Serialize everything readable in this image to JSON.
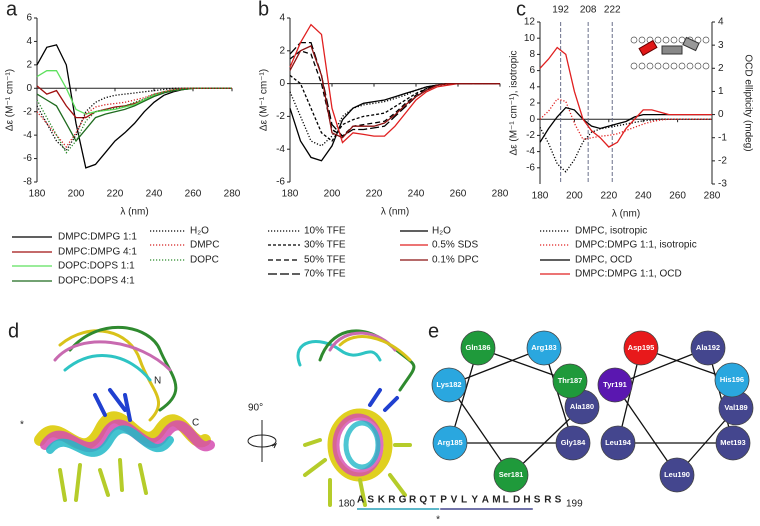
{
  "chart_data": [
    {
      "type": "line",
      "panel": "a",
      "xlabel": "λ (nm)",
      "ylabel": "Δε (M⁻¹ cm⁻¹)",
      "zero_line": true,
      "x": [
        180,
        185,
        190,
        195,
        200,
        205,
        210,
        215,
        220,
        225,
        230,
        235,
        240,
        245,
        250,
        255,
        260,
        265,
        270,
        275,
        280
      ],
      "xlim": [
        180,
        280
      ],
      "xticks": [
        180,
        200,
        220,
        240,
        260,
        280
      ],
      "ylim": [
        -8,
        6
      ],
      "yticks": [
        -8,
        -6,
        -4,
        -2,
        0,
        2,
        4,
        6
      ],
      "series": [
        {
          "name": "DMPC:DMPG 1:1",
          "color": "#000000",
          "dash": "solid",
          "values": [
            2.0,
            3.5,
            3.7,
            2.0,
            -3.0,
            -6.8,
            -6.5,
            -5.5,
            -4.5,
            -3.8,
            -3.0,
            -2.0,
            -1.2,
            -0.6,
            -0.3,
            -0.1,
            0,
            0,
            0,
            0,
            0
          ]
        },
        {
          "name": "DMPC:DMPG 4:1",
          "color": "#a01010",
          "dash": "solid",
          "values": [
            0.2,
            -0.5,
            -0.2,
            -1.5,
            -2.5,
            -2.5,
            -2.0,
            -1.8,
            -1.6,
            -1.5,
            -1.3,
            -1.0,
            -0.6,
            -0.3,
            -0.2,
            -0.1,
            0,
            0,
            0,
            0,
            0
          ]
        },
        {
          "name": "DOPC:DOPS 1:1",
          "color": "#5ee05e",
          "dash": "solid",
          "values": [
            1.0,
            1.5,
            1.5,
            0,
            -1.8,
            -2.2,
            -2.0,
            -1.9,
            -1.8,
            -1.6,
            -1.4,
            -1.0,
            -0.6,
            -0.3,
            -0.2,
            -0.1,
            0,
            0,
            0,
            0,
            0
          ]
        },
        {
          "name": "DOPC:DOPS 4:1",
          "color": "#1f6b1f",
          "dash": "solid",
          "values": [
            -0.5,
            -1.0,
            -1.5,
            -3.0,
            -4.5,
            -3.5,
            -2.5,
            -2.2,
            -2.0,
            -1.8,
            -1.5,
            -1.1,
            -0.7,
            -0.4,
            -0.2,
            -0.1,
            0,
            0,
            0,
            0,
            0
          ]
        },
        {
          "name": "H₂O",
          "color": "#000000",
          "dash": "dotted",
          "values": [
            -1.5,
            -3.0,
            -4.5,
            -5.3,
            -4.0,
            -2.0,
            -1.2,
            -0.8,
            -0.6,
            -0.5,
            -0.4,
            -0.3,
            -0.2,
            -0.1,
            0,
            0,
            0,
            0,
            0,
            0,
            0
          ]
        },
        {
          "name": "DMPC",
          "color": "#d42020",
          "dash": "dotted",
          "values": [
            -2.0,
            -3.0,
            -4.0,
            -5.0,
            -3.8,
            -2.2,
            -1.6,
            -1.4,
            -1.3,
            -1.2,
            -1.0,
            -0.8,
            -0.5,
            -0.3,
            -0.1,
            0,
            0,
            0,
            0,
            0,
            0
          ]
        },
        {
          "name": "DOPC",
          "color": "#2a8a2a",
          "dash": "dotted",
          "values": [
            -1.0,
            -2.5,
            -4.0,
            -5.5,
            -4.5,
            -2.8,
            -2.0,
            -1.8,
            -1.7,
            -1.5,
            -1.2,
            -0.9,
            -0.5,
            -0.3,
            -0.1,
            0,
            0,
            0,
            0,
            0,
            0
          ]
        }
      ]
    },
    {
      "type": "line",
      "panel": "b",
      "xlabel": "λ (nm)",
      "ylabel": "Δε (M⁻¹ cm⁻¹)",
      "zero_line": true,
      "x": [
        180,
        185,
        190,
        195,
        200,
        205,
        210,
        215,
        220,
        225,
        230,
        235,
        240,
        245,
        250,
        255,
        260,
        265,
        270,
        275,
        280
      ],
      "xlim": [
        180,
        280
      ],
      "xticks": [
        180,
        200,
        220,
        240,
        260,
        280
      ],
      "ylim": [
        -6,
        4
      ],
      "yticks": [
        -6,
        -4,
        -2,
        0,
        2,
        4
      ],
      "series": [
        {
          "name": "10% TFE",
          "color": "#000000",
          "dash": "dotted",
          "values": [
            -0.5,
            -2.0,
            -3.5,
            -3.8,
            -3.2,
            -2.0,
            -1.5,
            -1.3,
            -1.2,
            -1.1,
            -0.9,
            -0.7,
            -0.4,
            -0.2,
            -0.1,
            0,
            0,
            0,
            0,
            0,
            0
          ]
        },
        {
          "name": "30% TFE",
          "color": "#000000",
          "dash": "short-dash",
          "values": [
            0.5,
            0,
            -1.5,
            -3.0,
            -3.5,
            -2.5,
            -2.2,
            -2.0,
            -1.9,
            -1.8,
            -1.4,
            -1.0,
            -0.6,
            -0.3,
            -0.1,
            0,
            0,
            0,
            0,
            0,
            0
          ]
        },
        {
          "name": "50% TFE",
          "color": "#000000",
          "dash": "dash",
          "values": [
            1.5,
            2.0,
            1.8,
            0,
            -2.8,
            -3.2,
            -2.6,
            -2.5,
            -2.4,
            -2.3,
            -1.8,
            -1.2,
            -0.7,
            -0.3,
            -0.1,
            0,
            0,
            0,
            0,
            0,
            0
          ]
        },
        {
          "name": "70% TFE",
          "color": "#000000",
          "dash": "long-dash",
          "values": [
            1.8,
            2.5,
            2.5,
            0.5,
            -2.5,
            -3.2,
            -2.8,
            -2.8,
            -2.7,
            -2.6,
            -2.0,
            -1.4,
            -0.8,
            -0.4,
            -0.1,
            0,
            0,
            0,
            0,
            0,
            0
          ]
        },
        {
          "name": "H₂O",
          "color": "#000000",
          "dash": "solid",
          "values": [
            -1.5,
            -3.5,
            -4.5,
            -4.7,
            -3.8,
            -2.2,
            -1.5,
            -1.2,
            -1.1,
            -1.0,
            -0.8,
            -0.6,
            -0.4,
            -0.2,
            -0.1,
            0,
            0,
            0,
            0,
            0,
            0
          ]
        },
        {
          "name": "0.5% SDS",
          "color": "#e02020",
          "dash": "solid",
          "values": [
            1.0,
            2.5,
            3.6,
            3.0,
            -1.5,
            -3.6,
            -3.0,
            -3.1,
            -3.2,
            -3.2,
            -2.6,
            -1.8,
            -1.0,
            -0.5,
            -0.2,
            -0.1,
            0,
            0,
            0,
            0,
            0
          ]
        },
        {
          "name": "0.1% DPC",
          "color": "#8a1010",
          "dash": "solid",
          "values": [
            0.8,
            2.0,
            2.3,
            0.5,
            -3.0,
            -3.3,
            -2.6,
            -2.6,
            -2.6,
            -2.4,
            -1.9,
            -1.3,
            -0.8,
            -0.4,
            -0.1,
            0,
            0,
            0,
            0,
            0,
            0
          ]
        }
      ]
    },
    {
      "type": "line",
      "panel": "c",
      "xlabel": "λ (nm)",
      "ylabel": "Δε (M⁻¹ cm⁻¹), isotropic",
      "y2label": "OCD ellipticity (mdeg)",
      "zero_line": true,
      "x": [
        180,
        185,
        190,
        195,
        200,
        205,
        210,
        215,
        220,
        225,
        230,
        235,
        240,
        245,
        250,
        255,
        260,
        265,
        270,
        275,
        280
      ],
      "xlim": [
        180,
        280
      ],
      "xticks": [
        180,
        200,
        220,
        240,
        260,
        280
      ],
      "ylim": [
        -8,
        12
      ],
      "yticks": [
        -6,
        -4,
        -2,
        0,
        2,
        4,
        6,
        8,
        10,
        12
      ],
      "y2lim": [
        -3,
        4
      ],
      "y2ticks": [
        -3,
        -2,
        -1,
        0,
        1,
        2,
        3,
        4
      ],
      "vlines": [
        192,
        208,
        222
      ],
      "series": [
        {
          "name": "DMPC, isotropic",
          "color": "#000000",
          "dash": "dotted",
          "values": [
            -1.0,
            -3.0,
            -5.5,
            -6.5,
            -5.0,
            -2.8,
            -1.6,
            -1.2,
            -1.0,
            -0.8,
            -0.6,
            -0.4,
            -0.2,
            -0.1,
            0,
            0,
            0,
            0,
            0,
            0,
            0
          ]
        },
        {
          "name": "DMPC:DMPG 1:1, isotropic",
          "color": "#e02020",
          "dash": "dotted",
          "values": [
            0,
            1.0,
            2.5,
            2.2,
            -0.5,
            -2.5,
            -2.3,
            -2.1,
            -2.0,
            -1.8,
            -1.4,
            -1.0,
            -0.6,
            -0.3,
            -0.1,
            0,
            0,
            0,
            0,
            0,
            0
          ]
        },
        {
          "name": "DMPC, OCD",
          "color": "#000000",
          "dash": "solid",
          "axis": "y2",
          "values": [
            -1.2,
            -0.6,
            -0.1,
            0.3,
            0.2,
            -0.2,
            -0.5,
            -0.6,
            -0.5,
            -0.4,
            -0.3,
            -0.1,
            0,
            0,
            0,
            0,
            0,
            0,
            0,
            0,
            0
          ]
        },
        {
          "name": "DMPC:DMPG 1:1, OCD",
          "color": "#e02020",
          "dash": "solid",
          "axis": "y2",
          "values": [
            2.0,
            2.4,
            2.9,
            2.6,
            1.0,
            -0.2,
            -0.7,
            -1.0,
            -1.4,
            -1.2,
            -0.6,
            -0.2,
            0.2,
            0.2,
            0.1,
            0,
            0,
            0,
            0,
            0,
            0
          ]
        }
      ]
    }
  ],
  "panel_d": {
    "panel": "d",
    "n_terminus": "N",
    "c_terminus": "C",
    "rotation": "90°",
    "marker": "*"
  },
  "panel_e": {
    "panel": "e",
    "wheels": [
      {
        "residues": [
          {
            "label": "Ala180",
            "color": "#44468e"
          },
          {
            "label": "Ser181",
            "color": "#1f9a3b"
          },
          {
            "label": "Lys182",
            "color": "#2aa7df"
          },
          {
            "label": "Arg183",
            "color": "#2aa7df"
          },
          {
            "label": "Gly184",
            "color": "#44468e"
          },
          {
            "label": "Arg185",
            "color": "#2aa7df"
          },
          {
            "label": "Gln186",
            "color": "#1f9a3b"
          },
          {
            "label": "Thr187",
            "color": "#1f9a3b"
          }
        ]
      },
      {
        "residues": [
          {
            "label": "Val189",
            "color": "#44468e"
          },
          {
            "label": "Leu190",
            "color": "#44468e"
          },
          {
            "label": "Tyr191",
            "color": "#5a17b0"
          },
          {
            "label": "Ala192",
            "color": "#44468e"
          },
          {
            "label": "Met193",
            "color": "#44468e"
          },
          {
            "label": "Leu194",
            "color": "#44468e"
          },
          {
            "label": "Asp195",
            "color": "#e8191b"
          },
          {
            "label": "His196",
            "color": "#2aa7df"
          }
        ]
      }
    ],
    "sequence": {
      "start": 180,
      "end": 199,
      "marker": "*",
      "residues": [
        {
          "letter": "A",
          "color": "#44468e"
        },
        {
          "letter": "S",
          "color": "#1f9a3b"
        },
        {
          "letter": "K",
          "color": "#2aa7df"
        },
        {
          "letter": "R",
          "color": "#2aa7df"
        },
        {
          "letter": "G",
          "color": "#44468e"
        },
        {
          "letter": "R",
          "color": "#2aa7df"
        },
        {
          "letter": "Q",
          "color": "#1f9a3b"
        },
        {
          "letter": "T",
          "color": "#1f9a3b"
        },
        {
          "letter": "P",
          "color": "#777777"
        },
        {
          "letter": "V",
          "color": "#44468e"
        },
        {
          "letter": "L",
          "color": "#44468e"
        },
        {
          "letter": "Y",
          "color": "#5a17b0"
        },
        {
          "letter": "A",
          "color": "#44468e"
        },
        {
          "letter": "M",
          "color": "#44468e"
        },
        {
          "letter": "L",
          "color": "#44468e"
        },
        {
          "letter": "D",
          "color": "#e8191b"
        },
        {
          "letter": "H",
          "color": "#2aa7df"
        },
        {
          "letter": "S",
          "color": "#777777"
        },
        {
          "letter": "R",
          "color": "#777777"
        },
        {
          "letter": "S",
          "color": "#777777"
        }
      ]
    }
  }
}
